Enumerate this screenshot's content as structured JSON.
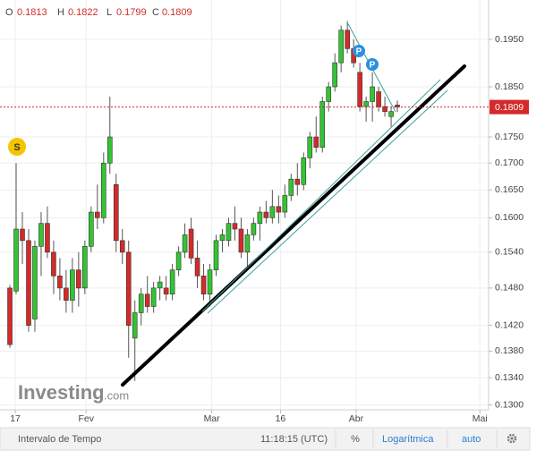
{
  "chart_data": {
    "type": "candlestick",
    "log_scale": true,
    "grid": true,
    "up_color": "#33c433",
    "down_color": "#d42a2a",
    "ohlc_labels": [
      "O",
      "H",
      "L",
      "C"
    ],
    "x": [
      0,
      1,
      2,
      3,
      4,
      5,
      6,
      7,
      8,
      9,
      10,
      11,
      12,
      13,
      14,
      15,
      16,
      17,
      18,
      19,
      20,
      21,
      22,
      23,
      24,
      25,
      26,
      27,
      28,
      29,
      30,
      31,
      32,
      33,
      34,
      35,
      36,
      37,
      38,
      39,
      40,
      41,
      42,
      43,
      44,
      45,
      46,
      47,
      48,
      49,
      50,
      51,
      52,
      53,
      54,
      55,
      56,
      57,
      58,
      59,
      60,
      61,
      62
    ],
    "open": [
      0.148,
      0.1475,
      0.158,
      0.156,
      0.143,
      0.155,
      0.159,
      0.154,
      0.15,
      0.148,
      0.146,
      0.151,
      0.148,
      0.155,
      0.161,
      0.16,
      0.17,
      0.166,
      0.156,
      0.154,
      0.14,
      0.144,
      0.147,
      0.145,
      0.148,
      0.148,
      0.147,
      0.151,
      0.154,
      0.158,
      0.153,
      0.15,
      0.147,
      0.151,
      0.156,
      0.156,
      0.159,
      0.158,
      0.154,
      0.157,
      0.159,
      0.161,
      0.16,
      0.162,
      0.161,
      0.164,
      0.167,
      0.166,
      0.171,
      0.175,
      0.173,
      0.182,
      0.185,
      0.19,
      0.197,
      0.193,
      0.188,
      0.181,
      0.182,
      0.184,
      0.181,
      0.179,
      0.1813
    ],
    "high": [
      0.1485,
      0.17,
      0.161,
      0.158,
      0.156,
      0.161,
      0.162,
      0.156,
      0.153,
      0.151,
      0.153,
      0.154,
      0.156,
      0.162,
      0.166,
      0.172,
      0.183,
      0.168,
      0.158,
      0.156,
      0.146,
      0.148,
      0.15,
      0.149,
      0.15,
      0.15,
      0.152,
      0.155,
      0.159,
      0.16,
      0.156,
      0.152,
      0.152,
      0.157,
      0.158,
      0.16,
      0.162,
      0.16,
      0.158,
      0.16,
      0.162,
      0.163,
      0.165,
      0.164,
      0.166,
      0.168,
      0.17,
      0.172,
      0.176,
      0.179,
      0.183,
      0.186,
      0.192,
      0.198,
      0.199,
      0.195,
      0.19,
      0.183,
      0.188,
      0.185,
      0.183,
      0.181,
      0.1822
    ],
    "low": [
      0.1385,
      0.147,
      0.152,
      0.141,
      0.141,
      0.15,
      0.153,
      0.147,
      0.146,
      0.144,
      0.144,
      0.145,
      0.147,
      0.154,
      0.158,
      0.159,
      0.168,
      0.154,
      0.152,
      0.137,
      0.1335,
      0.142,
      0.144,
      0.144,
      0.146,
      0.146,
      0.146,
      0.15,
      0.153,
      0.152,
      0.148,
      0.146,
      0.145,
      0.15,
      0.154,
      0.155,
      0.156,
      0.153,
      0.151,
      0.156,
      0.156,
      0.159,
      0.159,
      0.159,
      0.16,
      0.163,
      0.164,
      0.165,
      0.169,
      0.172,
      0.172,
      0.18,
      0.184,
      0.188,
      0.192,
      0.189,
      0.18,
      0.178,
      0.178,
      0.18,
      0.179,
      0.177,
      0.1799
    ],
    "close": [
      0.139,
      0.158,
      0.156,
      0.142,
      0.155,
      0.159,
      0.154,
      0.15,
      0.148,
      0.146,
      0.151,
      0.148,
      0.155,
      0.161,
      0.16,
      0.17,
      0.175,
      0.156,
      0.154,
      0.142,
      0.144,
      0.147,
      0.145,
      0.148,
      0.149,
      0.147,
      0.151,
      0.154,
      0.157,
      0.153,
      0.15,
      0.147,
      0.151,
      0.156,
      0.157,
      0.159,
      0.158,
      0.154,
      0.157,
      0.159,
      0.161,
      0.16,
      0.162,
      0.161,
      0.164,
      0.167,
      0.166,
      0.171,
      0.175,
      0.173,
      0.182,
      0.185,
      0.19,
      0.197,
      0.193,
      0.19,
      0.181,
      0.182,
      0.185,
      0.181,
      0.18,
      0.18,
      0.1809
    ],
    "xlim": [
      -1.58,
      76.6
    ],
    "xticks": [
      {
        "value": 0.86,
        "label": "17"
      },
      {
        "value": 12.2,
        "label": "Fev"
      },
      {
        "value": 32.3,
        "label": "Mar"
      },
      {
        "value": 43.3,
        "label": "16"
      },
      {
        "value": 55.4,
        "label": "Abr"
      },
      {
        "value": 75.2,
        "label": "Mai"
      }
    ],
    "ylim": [
      0.1293,
      0.2037
    ],
    "yticks": [
      {
        "value": 0.13,
        "label": "0.1300"
      },
      {
        "value": 0.134,
        "label": "0.1340"
      },
      {
        "value": 0.138,
        "label": "0.1380"
      },
      {
        "value": 0.142,
        "label": "0.1420"
      },
      {
        "value": 0.148,
        "label": "0.1480"
      },
      {
        "value": 0.154,
        "label": "0.1540"
      },
      {
        "value": 0.16,
        "label": "0.1600"
      },
      {
        "value": 0.165,
        "label": "0.1650"
      },
      {
        "value": 0.17,
        "label": "0.1700"
      },
      {
        "value": 0.175,
        "label": "0.1750"
      },
      {
        "value": 0.185,
        "label": "0.1850"
      },
      {
        "value": 0.195,
        "label": "0.1950"
      }
    ],
    "markers": [
      "S",
      "P",
      "P"
    ],
    "watermark": [
      "Investing",
      ".com"
    ]
  },
  "toolbar": [
    "Intervalo de Tempo",
    "11:18:15 (UTC)",
    "%",
    "Logarítmica",
    "auto"
  ]
}
